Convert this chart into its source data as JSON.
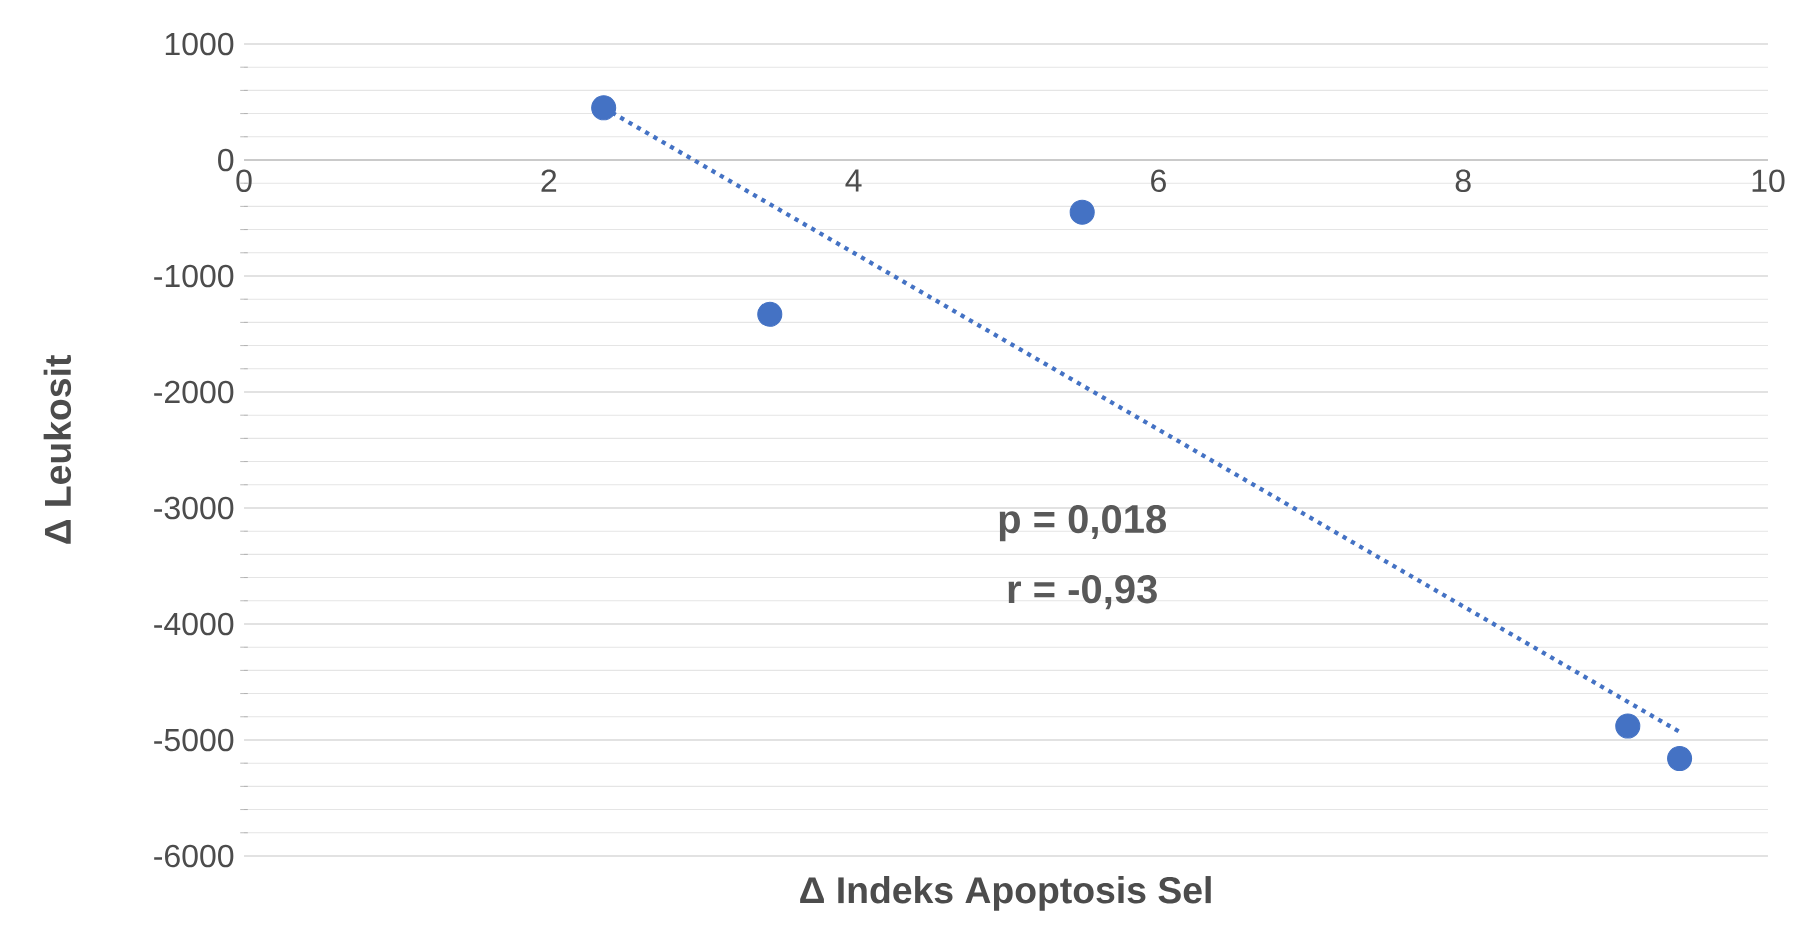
{
  "chart_data": {
    "type": "scatter",
    "xlabel": "Δ Indeks Apoptosis Sel",
    "ylabel": "Δ Leukosit",
    "xlim": [
      0,
      10
    ],
    "ylim": [
      -6000,
      1000
    ],
    "xticks": [
      0,
      2,
      4,
      6,
      8,
      10
    ],
    "yticks": [
      -6000,
      -5000,
      -4000,
      -3000,
      -2000,
      -1000,
      0,
      1000
    ],
    "grid": "y",
    "annotations": [
      "p = 0,018",
      "r = -0,93"
    ],
    "series": [
      {
        "color": "#4472c4",
        "marker": "circle",
        "x": [
          2.36,
          3.45,
          5.5,
          9.08,
          9.42
        ],
        "values": [
          450,
          -1330,
          -450,
          -4880,
          -5160
        ]
      },
      {
        "type": "line",
        "color": "#4472c4",
        "line_style": "dotted",
        "marker": "none",
        "x": [
          2.36,
          9.42
        ],
        "values": [
          450,
          -4930
        ]
      }
    ]
  }
}
